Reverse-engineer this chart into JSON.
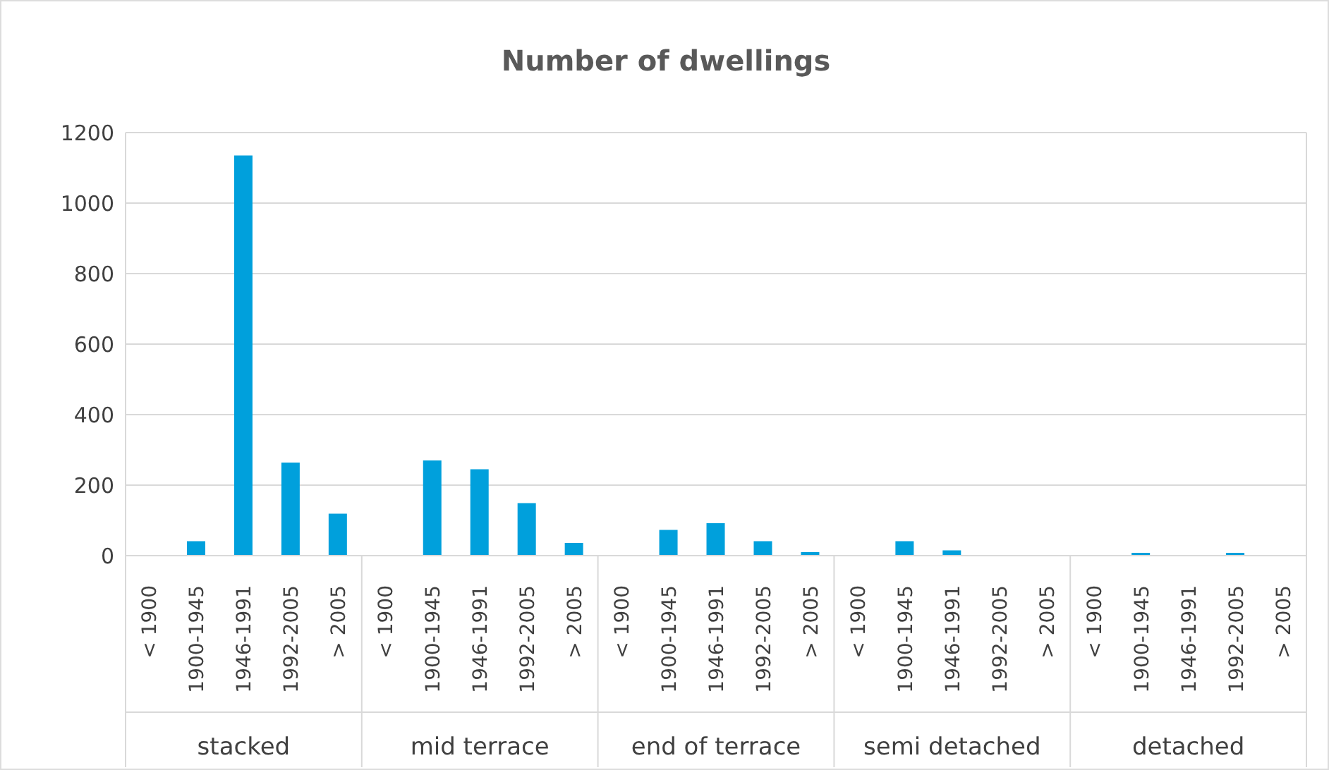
{
  "chart_data": {
    "type": "bar",
    "title": "Number of dwellings",
    "categories": [
      "< 1900",
      "1900-1945",
      "1946-1991",
      "1992-2005",
      "> 2005",
      "< 1900",
      "1900-1945",
      "1946-1991",
      "1992-2005",
      "> 2005",
      "< 1900",
      "1900-1945",
      "1946-1991",
      "1992-2005",
      "> 2005",
      "< 1900",
      "1900-1945",
      "1946-1991",
      "1992-2005",
      "> 2005",
      "< 1900",
      "1900-1945",
      "1946-1991",
      "1992-2005",
      "> 2005"
    ],
    "values": [
      0,
      41,
      1135,
      264,
      119,
      0,
      270,
      245,
      149,
      36,
      0,
      73,
      92,
      41,
      10,
      0,
      41,
      15,
      0,
      0,
      0,
      8,
      0,
      8,
      0
    ],
    "color": "#00a0dc",
    "ylim": [
      0,
      1200
    ],
    "yticks": [
      0,
      200,
      400,
      600,
      800,
      1000,
      1200
    ],
    "grid": "y",
    "annotations": [
      "stacked",
      "mid terrace",
      "end of terrace",
      "semi detached",
      "detached"
    ]
  }
}
